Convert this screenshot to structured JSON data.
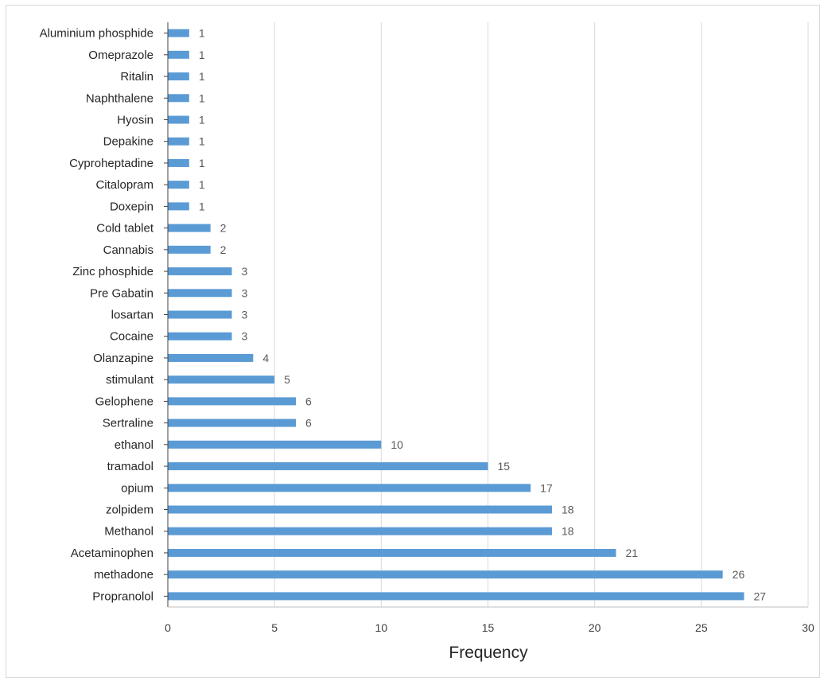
{
  "chart_data": {
    "type": "bar",
    "orientation": "horizontal",
    "title": "",
    "xlabel": "Frequency",
    "ylabel": "",
    "xlim": [
      0,
      30
    ],
    "xticks": [
      "0",
      "5",
      "10",
      "15",
      "20",
      "25",
      "30"
    ],
    "grid": true,
    "legend": "none",
    "bar_color": "#5b9bd5",
    "categories": [
      "Propranolol",
      "methadone",
      "Acetaminophen",
      "Methanol",
      "zolpidem",
      "opium",
      "tramadol",
      "ethanol",
      "Sertraline",
      "Gelophene",
      "stimulant",
      "Olanzapine",
      "Cocaine",
      "losartan",
      "Pre Gabatin",
      "Zinc phosphide",
      "Cannabis",
      "Cold tablet",
      "Doxepin",
      "Citalopram",
      "Cyproheptadine",
      "Depakine",
      "Hyosin",
      "Naphthalene",
      "Ritalin",
      "Omeprazole",
      "Aluminium phosphide"
    ],
    "values": [
      27,
      26,
      21,
      18,
      18,
      17,
      15,
      10,
      6,
      6,
      5,
      4,
      3,
      3,
      3,
      3,
      2,
      2,
      1,
      1,
      1,
      1,
      1,
      1,
      1,
      1,
      1
    ],
    "data_labels": [
      "27",
      "26",
      "21",
      "18",
      "18",
      "17",
      "15",
      "10",
      "6",
      "6",
      "5",
      "4",
      "3",
      "3",
      "3",
      "3",
      "2",
      "2",
      "1",
      "1",
      "1",
      "1",
      "1",
      "1",
      "1",
      "1",
      "1"
    ]
  }
}
